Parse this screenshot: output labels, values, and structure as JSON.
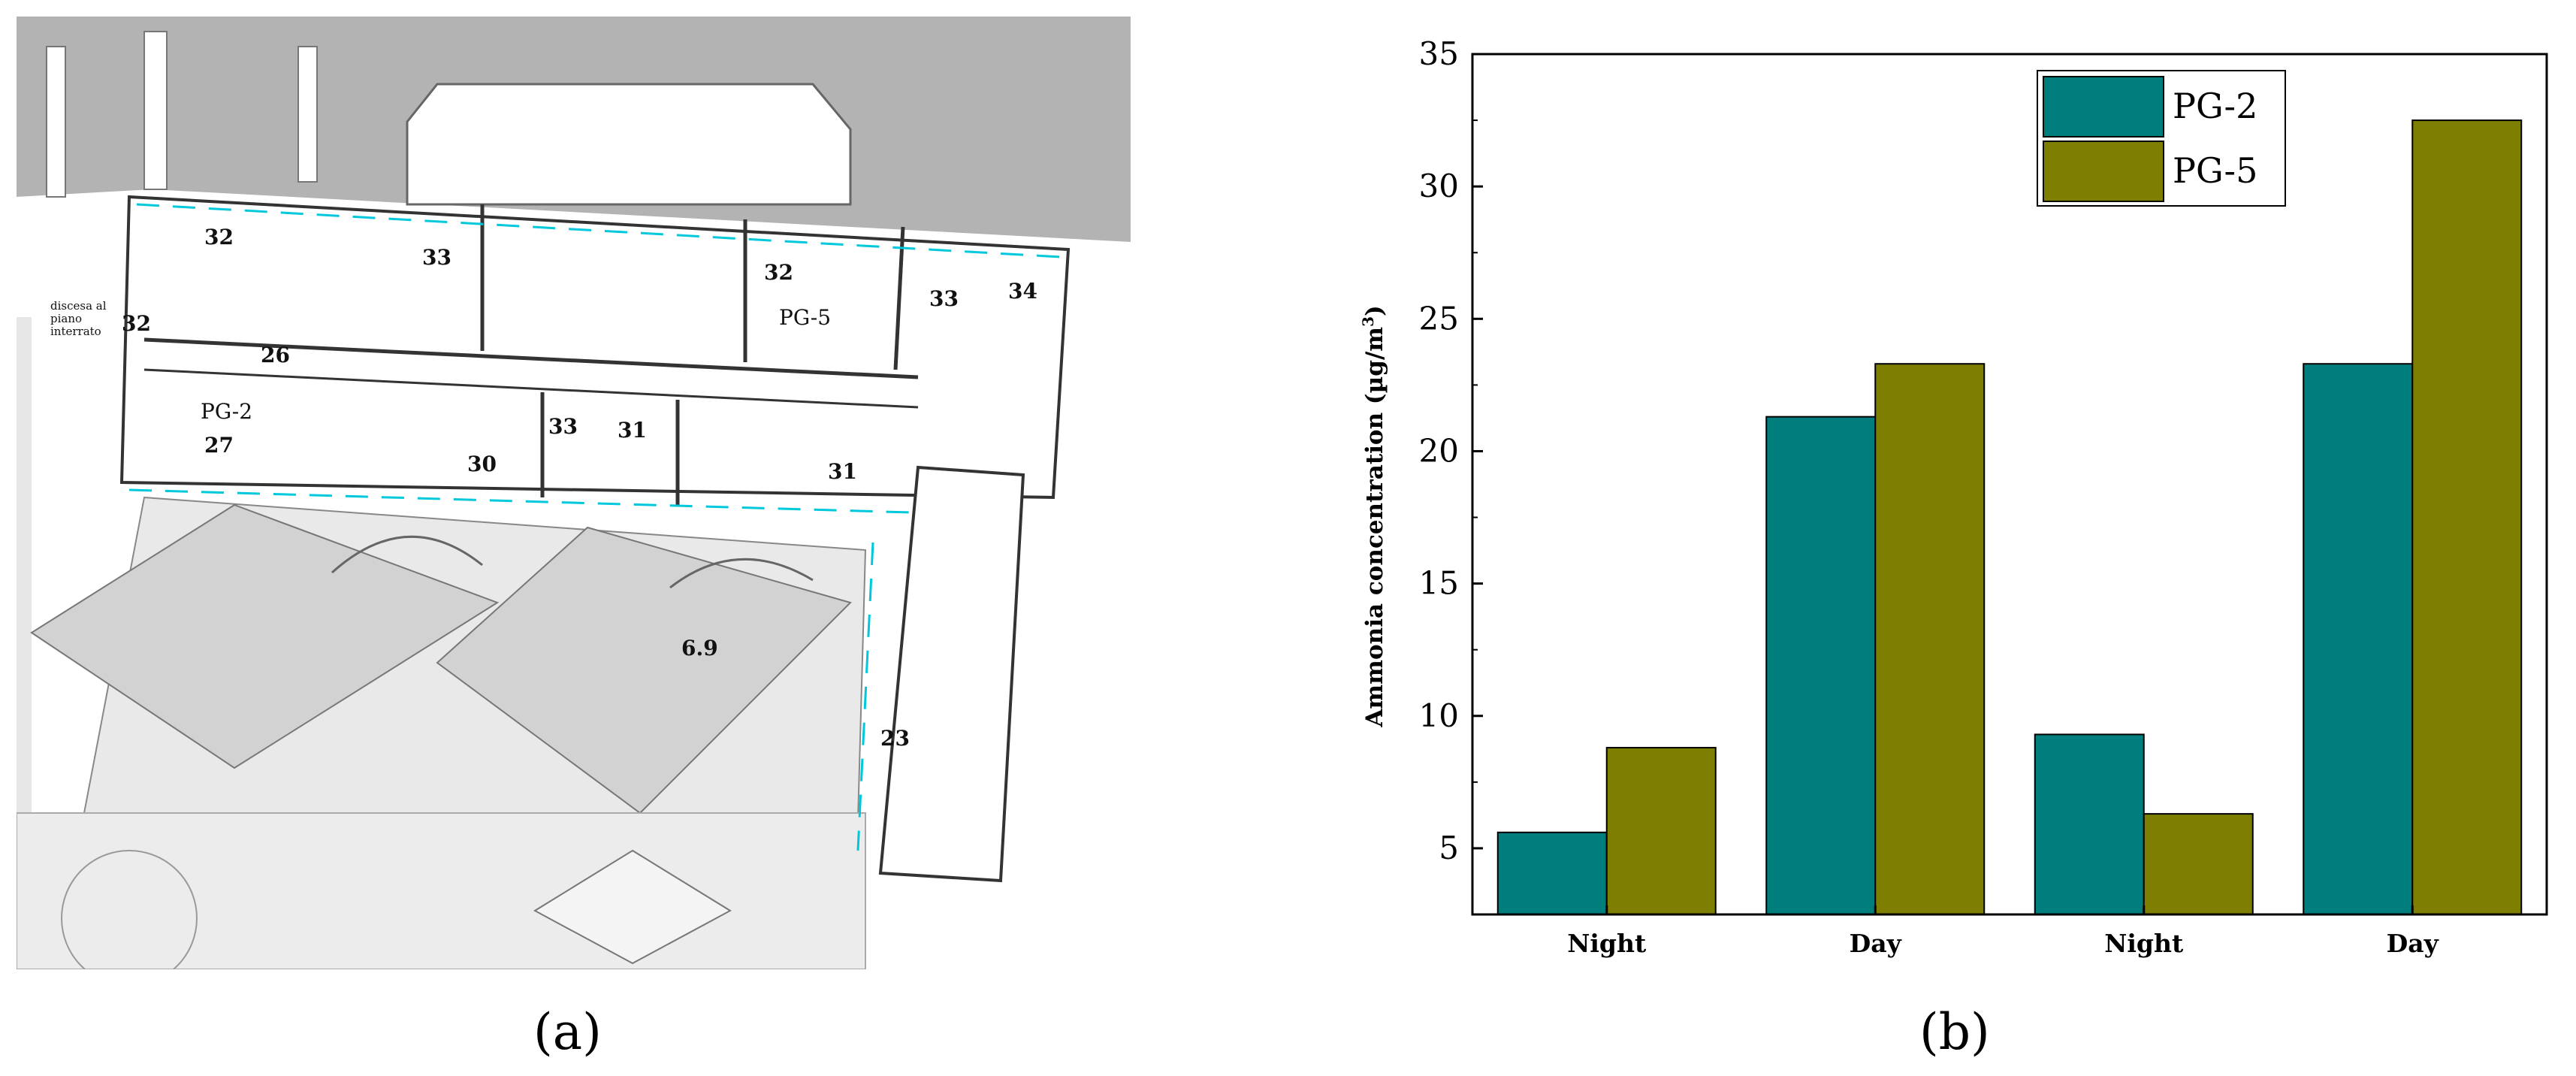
{
  "panel_a": {
    "caption": "(a)",
    "labels": {
      "descent_note": "discesa al\npiano\ninterrato",
      "room_labels": [
        "32",
        "33",
        "32",
        "33",
        "34",
        "32",
        "26",
        "PG-5",
        "PG-2",
        "27",
        "33",
        "31",
        "30",
        "31",
        "6.9",
        "23"
      ]
    }
  },
  "panel_b": {
    "caption": "(b)"
  },
  "chart_data": {
    "type": "bar",
    "categories": [
      "Night",
      "Day",
      "Night",
      "Day"
    ],
    "series": [
      {
        "name": "PG-2",
        "values": [
          5.6,
          21.3,
          9.3,
          23.3
        ],
        "color": "#007e7e"
      },
      {
        "name": "PG-5",
        "values": [
          8.8,
          23.3,
          6.3,
          32.5
        ],
        "color": "#7e7e00"
      }
    ],
    "ylabel": "Ammonia concentration (µg/m",
    "ylabel_sup": "3",
    "ylabel_tail": ")",
    "xlabel": "",
    "title": "",
    "ylim": [
      2.5,
      35
    ],
    "yticks": [
      5,
      10,
      15,
      20,
      25,
      30,
      35
    ],
    "grid": false,
    "legend": "top-right"
  }
}
